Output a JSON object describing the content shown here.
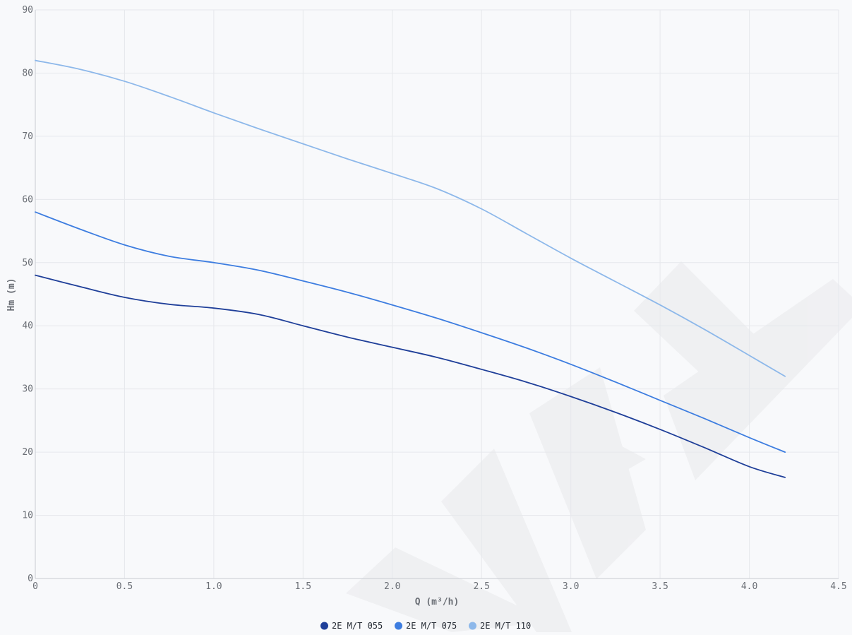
{
  "chart_data": {
    "type": "line",
    "xlabel": "Q (m³/h)",
    "ylabel": "Hm (m)",
    "xlim": [
      0,
      4.5
    ],
    "ylim": [
      0,
      90
    ],
    "x_ticks": [
      0,
      0.5,
      1.0,
      1.5,
      2.0,
      2.5,
      3.0,
      3.5,
      4.0,
      4.5
    ],
    "x_tick_labels": [
      "0",
      "0.5",
      "1.0",
      "1.5",
      "2.0",
      "2.5",
      "3.0",
      "3.5",
      "4.0",
      "4.5"
    ],
    "y_ticks": [
      0,
      10,
      20,
      30,
      40,
      50,
      60,
      70,
      80,
      90
    ],
    "y_tick_labels": [
      "0",
      "10",
      "20",
      "30",
      "40",
      "50",
      "60",
      "70",
      "80",
      "90"
    ],
    "grid": true,
    "legend_position": "bottom-center",
    "series": [
      {
        "name": "2E M/T 055",
        "color": "#1f3f99",
        "x": [
          0,
          0.25,
          0.5,
          0.75,
          1.0,
          1.25,
          1.5,
          1.75,
          2.0,
          2.25,
          2.5,
          2.75,
          3.0,
          3.25,
          3.5,
          3.75,
          4.0,
          4.2
        ],
        "y": [
          48,
          46.2,
          44.5,
          43.4,
          42.8,
          41.8,
          40.0,
          38.2,
          36.6,
          35.0,
          33.1,
          31.1,
          28.8,
          26.3,
          23.6,
          20.7,
          17.7,
          16
        ]
      },
      {
        "name": "2E M/T 075",
        "color": "#3d7de0",
        "x": [
          0,
          0.25,
          0.5,
          0.75,
          1.0,
          1.25,
          1.5,
          1.75,
          2.0,
          2.25,
          2.5,
          2.75,
          3.0,
          3.25,
          3.5,
          3.75,
          4.0,
          4.2
        ],
        "y": [
          58,
          55.3,
          52.8,
          51.0,
          50.0,
          48.8,
          47.1,
          45.3,
          43.3,
          41.2,
          38.9,
          36.5,
          33.9,
          31.1,
          28.2,
          25.3,
          22.3,
          20
        ]
      },
      {
        "name": "2E M/T 110",
        "color": "#8db8ea",
        "x": [
          0,
          0.25,
          0.5,
          0.75,
          1.0,
          1.25,
          1.5,
          1.75,
          2.0,
          2.25,
          2.5,
          2.75,
          3.0,
          3.25,
          3.5,
          3.75,
          4.0,
          4.2
        ],
        "y": [
          82,
          80.6,
          78.7,
          76.3,
          73.7,
          71.2,
          68.8,
          66.4,
          64.1,
          61.7,
          58.5,
          54.6,
          50.7,
          47.0,
          43.3,
          39.4,
          35.3,
          32
        ]
      }
    ]
  }
}
